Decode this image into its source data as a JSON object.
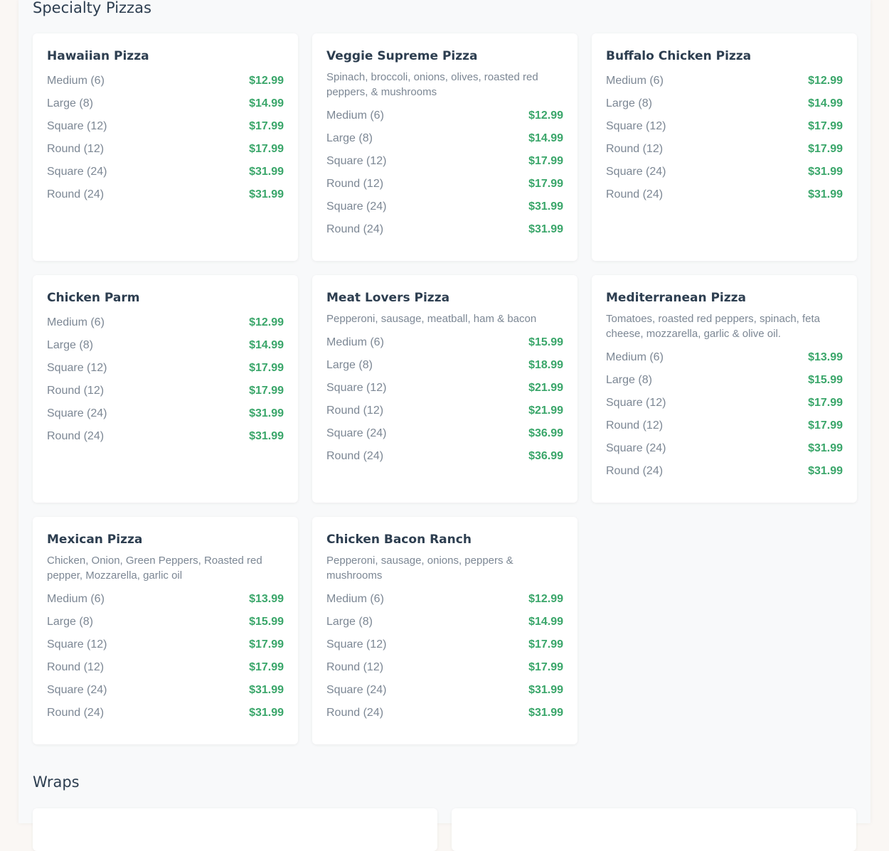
{
  "sections": {
    "specialty_title": "Specialty Pizzas",
    "wraps_title": "Wraps"
  },
  "colors": {
    "price": "#3aa66a",
    "heading": "#2d3e50",
    "muted": "#7c8794"
  },
  "pizzas": [
    {
      "name": "Hawaiian Pizza",
      "description": "",
      "prices": [
        {
          "size": "Medium (6)",
          "price": "$12.99"
        },
        {
          "size": "Large (8)",
          "price": "$14.99"
        },
        {
          "size": "Square (12)",
          "price": "$17.99"
        },
        {
          "size": "Round (12)",
          "price": "$17.99"
        },
        {
          "size": "Square (24)",
          "price": "$31.99"
        },
        {
          "size": "Round (24)",
          "price": "$31.99"
        }
      ]
    },
    {
      "name": "Veggie Supreme Pizza",
      "description": "Spinach, broccoli, onions, olives, roasted red peppers, & mushrooms",
      "prices": [
        {
          "size": "Medium (6)",
          "price": "$12.99"
        },
        {
          "size": "Large (8)",
          "price": "$14.99"
        },
        {
          "size": "Square (12)",
          "price": "$17.99"
        },
        {
          "size": "Round (12)",
          "price": "$17.99"
        },
        {
          "size": "Square (24)",
          "price": "$31.99"
        },
        {
          "size": "Round (24)",
          "price": "$31.99"
        }
      ]
    },
    {
      "name": "Buffalo Chicken Pizza",
      "description": "",
      "prices": [
        {
          "size": "Medium (6)",
          "price": "$12.99"
        },
        {
          "size": "Large (8)",
          "price": "$14.99"
        },
        {
          "size": "Square (12)",
          "price": "$17.99"
        },
        {
          "size": "Round (12)",
          "price": "$17.99"
        },
        {
          "size": "Square (24)",
          "price": "$31.99"
        },
        {
          "size": "Round (24)",
          "price": "$31.99"
        }
      ]
    },
    {
      "name": "Chicken Parm",
      "description": "",
      "prices": [
        {
          "size": "Medium (6)",
          "price": "$12.99"
        },
        {
          "size": "Large (8)",
          "price": "$14.99"
        },
        {
          "size": "Square (12)",
          "price": "$17.99"
        },
        {
          "size": "Round (12)",
          "price": "$17.99"
        },
        {
          "size": "Square (24)",
          "price": "$31.99"
        },
        {
          "size": "Round (24)",
          "price": "$31.99"
        }
      ]
    },
    {
      "name": "Meat Lovers Pizza",
      "description": "Pepperoni, sausage, meatball, ham & bacon",
      "prices": [
        {
          "size": "Medium (6)",
          "price": "$15.99"
        },
        {
          "size": "Large (8)",
          "price": "$18.99"
        },
        {
          "size": "Square (12)",
          "price": "$21.99"
        },
        {
          "size": "Round (12)",
          "price": "$21.99"
        },
        {
          "size": "Square (24)",
          "price": "$36.99"
        },
        {
          "size": "Round (24)",
          "price": "$36.99"
        }
      ]
    },
    {
      "name": "Mediterranean Pizza",
      "description": "Tomatoes, roasted red peppers, spinach, feta cheese, mozzarella, garlic & olive oil.",
      "prices": [
        {
          "size": "Medium (6)",
          "price": "$13.99"
        },
        {
          "size": "Large (8)",
          "price": "$15.99"
        },
        {
          "size": "Square (12)",
          "price": "$17.99"
        },
        {
          "size": "Round (12)",
          "price": "$17.99"
        },
        {
          "size": "Square (24)",
          "price": "$31.99"
        },
        {
          "size": "Round (24)",
          "price": "$31.99"
        }
      ]
    },
    {
      "name": "Mexican Pizza",
      "description": "Chicken, Onion, Green Peppers, Roasted red pepper, Mozzarella, garlic oil",
      "prices": [
        {
          "size": "Medium (6)",
          "price": "$13.99"
        },
        {
          "size": "Large (8)",
          "price": "$15.99"
        },
        {
          "size": "Square (12)",
          "price": "$17.99"
        },
        {
          "size": "Round (12)",
          "price": "$17.99"
        },
        {
          "size": "Square (24)",
          "price": "$31.99"
        },
        {
          "size": "Round (24)",
          "price": "$31.99"
        }
      ]
    },
    {
      "name": "Chicken Bacon Ranch",
      "description": "Pepperoni, sausage, onions, peppers & mushrooms",
      "prices": [
        {
          "size": "Medium (6)",
          "price": "$12.99"
        },
        {
          "size": "Large (8)",
          "price": "$14.99"
        },
        {
          "size": "Square (12)",
          "price": "$17.99"
        },
        {
          "size": "Round (12)",
          "price": "$17.99"
        },
        {
          "size": "Square (24)",
          "price": "$31.99"
        },
        {
          "size": "Round (24)",
          "price": "$31.99"
        }
      ]
    }
  ]
}
